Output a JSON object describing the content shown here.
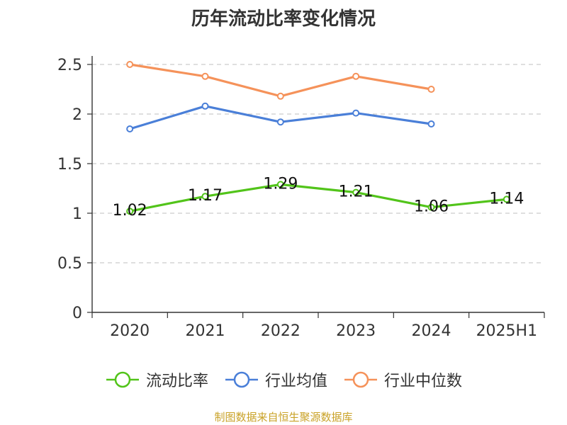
{
  "chart_data": {
    "type": "line",
    "title": "历年流动比率变化情况",
    "categories": [
      "2020",
      "2021",
      "2022",
      "2023",
      "2024",
      "2025H1"
    ],
    "ylim": [
      0,
      2.5
    ],
    "yticks": [
      "0",
      "0.5",
      "1",
      "1.5",
      "2",
      "2.5"
    ],
    "ytick_values": [
      0,
      0.5,
      1,
      1.5,
      2,
      2.5
    ],
    "grid": true,
    "legend_position": "bottom",
    "series": [
      {
        "name": "流动比率",
        "color": "#52c41a",
        "values": [
          1.02,
          1.17,
          1.29,
          1.21,
          1.06,
          1.14
        ],
        "labels": [
          "1.02",
          "1.17",
          "1.29",
          "1.21",
          "1.06",
          "1.14"
        ]
      },
      {
        "name": "行业均值",
        "color": "#4a7fd8",
        "values": [
          1.85,
          2.08,
          1.92,
          2.01,
          1.9,
          null
        ]
      },
      {
        "name": "行业中位数",
        "color": "#f5925a",
        "values": [
          2.5,
          2.38,
          2.18,
          2.38,
          2.25,
          null
        ]
      }
    ]
  },
  "source": "制图数据来自恒生聚源数据库"
}
